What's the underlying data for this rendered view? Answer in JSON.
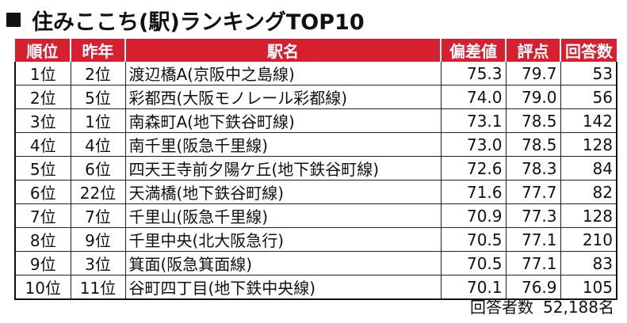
{
  "title": "住みここち(駅)ランキングTOP10",
  "headers": {
    "rank": "順位",
    "prev": "昨年",
    "station": "駅名",
    "deviation": "偏差値",
    "score": "評点",
    "respondents": "回答数"
  },
  "rows": [
    {
      "rank": "1位",
      "prev": "2位",
      "station": "渡辺橋A(京阪中之島線)",
      "deviation": "75.3",
      "score": "79.7",
      "respondents": "53"
    },
    {
      "rank": "2位",
      "prev": "5位",
      "station": "彩都西(大阪モノレール彩都線)",
      "deviation": "74.0",
      "score": "79.0",
      "respondents": "56"
    },
    {
      "rank": "3位",
      "prev": "1位",
      "station": "南森町A(地下鉄谷町線)",
      "deviation": "73.1",
      "score": "78.5",
      "respondents": "142"
    },
    {
      "rank": "4位",
      "prev": "4位",
      "station": "南千里(阪急千里線)",
      "deviation": "73.0",
      "score": "78.5",
      "respondents": "128"
    },
    {
      "rank": "5位",
      "prev": "6位",
      "station": "四天王寺前夕陽ケ丘(地下鉄谷町線)",
      "deviation": "72.6",
      "score": "78.3",
      "respondents": "84"
    },
    {
      "rank": "6位",
      "prev": "22位",
      "station": "天満橋(地下鉄谷町線)",
      "deviation": "71.6",
      "score": "77.7",
      "respondents": "82"
    },
    {
      "rank": "7位",
      "prev": "7位",
      "station": "千里山(阪急千里線)",
      "deviation": "70.9",
      "score": "77.3",
      "respondents": "128"
    },
    {
      "rank": "8位",
      "prev": "9位",
      "station": "千里中央(北大阪急行)",
      "deviation": "70.5",
      "score": "77.1",
      "respondents": "210"
    },
    {
      "rank": "9位",
      "prev": "3位",
      "station": "箕面(阪急箕面線)",
      "deviation": "70.5",
      "score": "77.1",
      "respondents": "83"
    },
    {
      "rank": "10位",
      "prev": "11位",
      "station": "谷町四丁目(地下鉄中央線)",
      "deviation": "70.1",
      "score": "76.9",
      "respondents": "105"
    }
  ],
  "footer": {
    "label": "回答者数",
    "value": "52,188名"
  },
  "colors": {
    "header_bg": "#d7202f",
    "header_text": "#ffffff"
  }
}
